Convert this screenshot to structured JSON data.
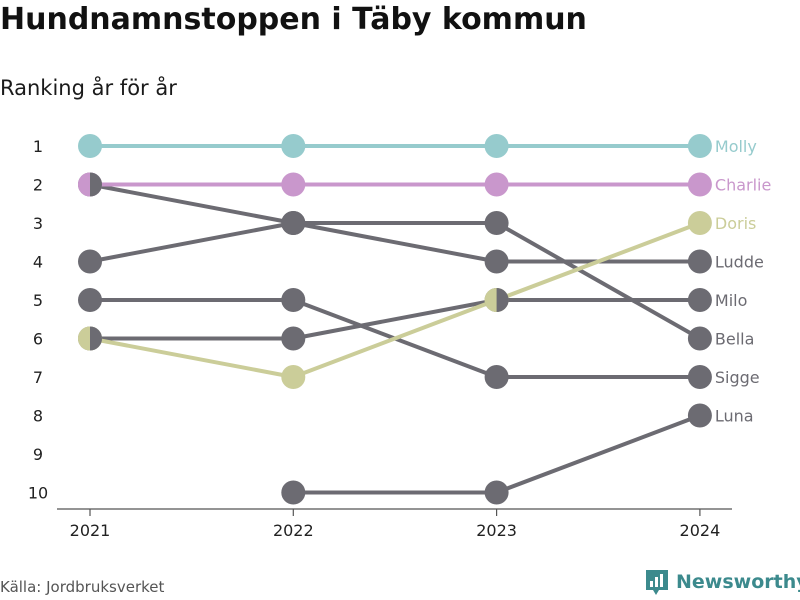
{
  "title": "Hundnamnstoppen i Täby kommun",
  "subtitle": "Ranking år för år",
  "source": "Källa: Jordbruksverket",
  "brand": {
    "name": "Newsworthy",
    "icon": "newsworthy-logo-icon",
    "color": "#3c8a8d"
  },
  "chart_data": {
    "type": "line",
    "title": "Hundnamnstoppen i Täby kommun",
    "subtitle": "Ranking år för år",
    "x": [
      "2021",
      "2022",
      "2023",
      "2024"
    ],
    "y_ticks": [
      1,
      2,
      3,
      4,
      5,
      6,
      7,
      8,
      9,
      10
    ],
    "ylim": [
      1,
      10
    ],
    "y_inverted": true,
    "grid": false,
    "series": [
      {
        "name": "Molly",
        "ranks": [
          1,
          1,
          1,
          1
        ],
        "color": "#96cbcd",
        "highlight": true
      },
      {
        "name": "Charlie",
        "ranks": [
          2,
          2,
          2,
          2
        ],
        "color": "#c997cc",
        "highlight": true
      },
      {
        "name": "Doris",
        "ranks": [
          6,
          7,
          5,
          3
        ],
        "color": "#cbcd99",
        "highlight": true
      },
      {
        "name": "Ludde",
        "ranks": [
          4,
          3,
          4,
          4
        ],
        "color": "#6c6b72",
        "highlight": false
      },
      {
        "name": "Milo",
        "ranks": [
          6,
          6,
          5,
          5
        ],
        "color": "#6c6b72",
        "highlight": false
      },
      {
        "name": "Bella",
        "ranks": [
          2,
          3,
          3,
          6
        ],
        "color": "#6c6b72",
        "highlight": false
      },
      {
        "name": "Sigge",
        "ranks": [
          5,
          5,
          7,
          7
        ],
        "color": "#6c6b72",
        "highlight": false
      },
      {
        "name": "Luna",
        "ranks": [
          null,
          10,
          10,
          8
        ],
        "color": "#6c6b72",
        "highlight": false
      }
    ]
  }
}
